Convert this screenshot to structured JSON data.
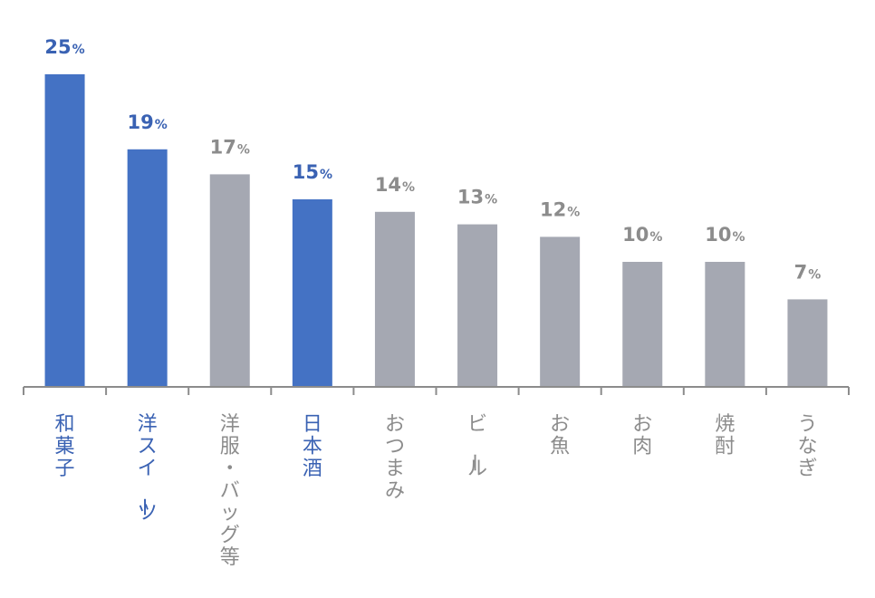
{
  "chart_data": {
    "type": "bar",
    "title": "",
    "xlabel": "",
    "ylabel": "",
    "ylim": [
      0,
      25
    ],
    "grid": false,
    "unit": "%",
    "categories": [
      "和菓子",
      "洋スイーツ",
      "洋服・バッグ等",
      "日本酒",
      "おつまみ",
      "ビール",
      "お魚",
      "お肉",
      "焼酎",
      "うなぎ"
    ],
    "values": [
      25,
      19,
      17,
      15,
      14,
      13,
      12,
      10,
      10,
      7
    ],
    "value_labels": [
      "25",
      "19",
      "17",
      "15",
      "14",
      "13",
      "12",
      "10",
      "10",
      "7"
    ],
    "highlighted": [
      true,
      true,
      false,
      true,
      false,
      false,
      false,
      false,
      false,
      false
    ]
  },
  "colors": {
    "highlight_bar": "#4472C4",
    "highlight_text": "#3A62B3",
    "normal_bar": "#A5A8B2",
    "normal_text": "#8C8C8C",
    "axis": "#8C8C8C"
  }
}
